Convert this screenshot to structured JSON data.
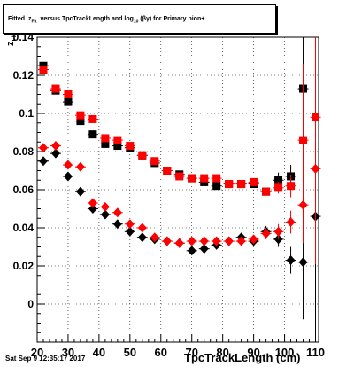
{
  "title": {
    "prefix": "Fitted",
    "z": "z",
    "z_sub": "Fit",
    "middle": "versus TpcTrackLength and log",
    "log_sub": "10",
    "suffix": "(βγ) for Primary pion+"
  },
  "footer": {
    "date": "Sat Sep  9 12:35:17 2017"
  },
  "axes": {
    "xlabel": "TpcTrackLength (cm)",
    "ylabel_main": "z",
    "ylabel_sub": "Fit"
  },
  "colors": {
    "black_series": "#000000",
    "red_series": "#ff0000"
  },
  "chart_data": {
    "type": "scatter",
    "xlim": [
      20,
      111
    ],
    "ylim": [
      -0.02,
      0.14
    ],
    "x_ticks": [
      20,
      30,
      40,
      50,
      60,
      70,
      80,
      90,
      100,
      110
    ],
    "y_ticks": [
      0,
      0.02,
      0.04,
      0.06,
      0.08,
      0.1,
      0.12,
      0.14
    ],
    "y_tick_labels": [
      "0",
      "0.02",
      "0.04",
      "0.06",
      "0.08",
      "0.1",
      "0.12",
      "0.14"
    ],
    "grid": true,
    "series": [
      {
        "color": "#000000",
        "marker": "square",
        "x": [
          22,
          26,
          30,
          34,
          38,
          42,
          46,
          50,
          54,
          58,
          62,
          66,
          70,
          74,
          78,
          82,
          86,
          90,
          94,
          98,
          102,
          106
        ],
        "y": [
          0.125,
          0.112,
          0.106,
          0.096,
          0.089,
          0.084,
          0.083,
          0.082,
          0.078,
          0.074,
          0.07,
          0.068,
          0.066,
          0.064,
          0.062,
          0.063,
          0.063,
          0.063,
          0.059,
          0.065,
          0.067,
          0.113
        ],
        "err": [
          0.002,
          0.002,
          0.002,
          0.002,
          0.002,
          0.002,
          0.002,
          0.002,
          0.002,
          0.002,
          0.002,
          0.002,
          0.002,
          0.002,
          0.002,
          0.002,
          0.002,
          0.002,
          0.002,
          0.004,
          0.006,
          0.06
        ]
      },
      {
        "color": "#ff0000",
        "marker": "square",
        "x": [
          22,
          26,
          30,
          34,
          38,
          42,
          46,
          50,
          54,
          58,
          62,
          66,
          70,
          74,
          78,
          82,
          86,
          90,
          94,
          98,
          102,
          106,
          110
        ],
        "y": [
          0.123,
          0.113,
          0.11,
          0.099,
          0.097,
          0.087,
          0.086,
          0.083,
          0.078,
          0.075,
          0.07,
          0.067,
          0.066,
          0.066,
          0.066,
          0.063,
          0.063,
          0.064,
          0.059,
          0.061,
          0.062,
          0.086,
          0.098
        ],
        "err": [
          0.002,
          0.002,
          0.002,
          0.002,
          0.002,
          0.002,
          0.002,
          0.002,
          0.002,
          0.002,
          0.002,
          0.002,
          0.002,
          0.002,
          0.002,
          0.002,
          0.002,
          0.002,
          0.002,
          0.003,
          0.006,
          0.04,
          0.07
        ]
      },
      {
        "color": "#000000",
        "marker": "diamond",
        "x": [
          22,
          26,
          30,
          34,
          38,
          42,
          46,
          50,
          54,
          58,
          62,
          66,
          70,
          74,
          78,
          82,
          86,
          90,
          94,
          98,
          102,
          106,
          110
        ],
        "y": [
          0.075,
          0.079,
          0.067,
          0.059,
          0.05,
          0.047,
          0.042,
          0.038,
          0.035,
          0.034,
          0.033,
          0.032,
          0.028,
          0.029,
          0.031,
          0.033,
          0.035,
          0.033,
          0.038,
          0.034,
          0.023,
          0.022,
          0.046
        ],
        "err": [
          0.002,
          0.002,
          0.002,
          0.002,
          0.002,
          0.002,
          0.002,
          0.002,
          0.002,
          0.002,
          0.002,
          0.002,
          0.002,
          0.002,
          0.002,
          0.002,
          0.002,
          0.002,
          0.003,
          0.004,
          0.007,
          0.03,
          0.07
        ]
      },
      {
        "color": "#ff0000",
        "marker": "diamond",
        "x": [
          22,
          26,
          30,
          34,
          38,
          42,
          46,
          50,
          54,
          58,
          62,
          66,
          70,
          74,
          78,
          82,
          86,
          90,
          94,
          98,
          102,
          106,
          110
        ],
        "y": [
          0.082,
          0.083,
          0.073,
          0.072,
          0.053,
          0.051,
          0.048,
          0.042,
          0.04,
          0.035,
          0.033,
          0.032,
          0.033,
          0.033,
          0.033,
          0.033,
          0.033,
          0.034,
          0.037,
          0.038,
          0.043,
          0.052,
          0.071
        ],
        "err": [
          0.002,
          0.002,
          0.002,
          0.002,
          0.002,
          0.002,
          0.002,
          0.002,
          0.002,
          0.002,
          0.002,
          0.002,
          0.002,
          0.002,
          0.002,
          0.002,
          0.002,
          0.002,
          0.003,
          0.004,
          0.006,
          0.02,
          0.05
        ]
      }
    ]
  }
}
